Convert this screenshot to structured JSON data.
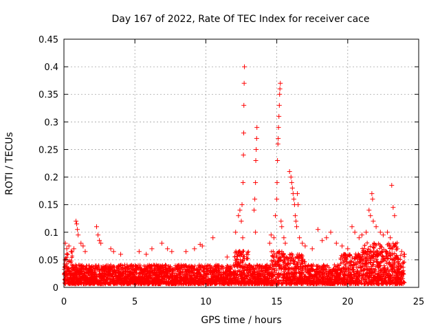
{
  "chart_data": {
    "type": "scatter",
    "title": "Day 167 of 2022, Rate Of TEC Index for receiver cace",
    "xlabel": "GPS time / hours",
    "ylabel": "ROTI / TECUs",
    "xlim": [
      0,
      25
    ],
    "ylim": [
      0,
      0.45
    ],
    "xticks": [
      0,
      5,
      10,
      15,
      20,
      25
    ],
    "xtick_labels": [
      "0",
      "5",
      "10",
      "15",
      "20",
      "25"
    ],
    "yticks": [
      0,
      0.05,
      0.1,
      0.15,
      0.2,
      0.25,
      0.3,
      0.35,
      0.4,
      0.45
    ],
    "ytick_labels": [
      "0",
      "0.05",
      "0.1",
      "0.15",
      "0.2",
      "0.25",
      "0.3",
      "0.35",
      "0.4",
      "0.45"
    ],
    "grid": true,
    "marker": "+",
    "color": "#ff0000",
    "series": [
      {
        "name": "ROTI",
        "points": [
          [
            0.1,
            0.08
          ],
          [
            0.2,
            0.07
          ],
          [
            0.35,
            0.075
          ],
          [
            0.5,
            0.065
          ],
          [
            0.7,
            0.07
          ],
          [
            0.85,
            0.12
          ],
          [
            0.9,
            0.115
          ],
          [
            0.95,
            0.105
          ],
          [
            1.0,
            0.095
          ],
          [
            1.2,
            0.08
          ],
          [
            1.35,
            0.075
          ],
          [
            1.5,
            0.065
          ],
          [
            2.3,
            0.11
          ],
          [
            2.4,
            0.095
          ],
          [
            2.5,
            0.085
          ],
          [
            2.6,
            0.08
          ],
          [
            3.3,
            0.07
          ],
          [
            3.5,
            0.065
          ],
          [
            4.0,
            0.06
          ],
          [
            5.3,
            0.065
          ],
          [
            5.8,
            0.06
          ],
          [
            6.2,
            0.07
          ],
          [
            6.9,
            0.08
          ],
          [
            7.3,
            0.07
          ],
          [
            7.6,
            0.065
          ],
          [
            8.6,
            0.065
          ],
          [
            9.2,
            0.07
          ],
          [
            9.6,
            0.078
          ],
          [
            9.75,
            0.075
          ],
          [
            10.5,
            0.09
          ],
          [
            11.5,
            0.055
          ],
          [
            12.1,
            0.1
          ],
          [
            12.3,
            0.13
          ],
          [
            12.4,
            0.14
          ],
          [
            12.5,
            0.12
          ],
          [
            12.55,
            0.15
          ],
          [
            12.6,
            0.09
          ],
          [
            12.62,
            0.19
          ],
          [
            12.65,
            0.24
          ],
          [
            12.67,
            0.28
          ],
          [
            12.68,
            0.33
          ],
          [
            12.7,
            0.37
          ],
          [
            12.72,
            0.4
          ],
          [
            13.4,
            0.14
          ],
          [
            13.45,
            0.16
          ],
          [
            13.5,
            0.19
          ],
          [
            13.52,
            0.23
          ],
          [
            13.55,
            0.25
          ],
          [
            13.58,
            0.27
          ],
          [
            13.6,
            0.29
          ],
          [
            13.5,
            0.1
          ],
          [
            14.5,
            0.08
          ],
          [
            14.6,
            0.095
          ],
          [
            14.8,
            0.09
          ],
          [
            14.9,
            0.13
          ],
          [
            15.0,
            0.16
          ],
          [
            15.02,
            0.19
          ],
          [
            15.05,
            0.23
          ],
          [
            15.08,
            0.26
          ],
          [
            15.1,
            0.27
          ],
          [
            15.12,
            0.29
          ],
          [
            15.15,
            0.31
          ],
          [
            15.18,
            0.33
          ],
          [
            15.2,
            0.35
          ],
          [
            15.22,
            0.36
          ],
          [
            15.25,
            0.37
          ],
          [
            15.3,
            0.12
          ],
          [
            15.35,
            0.11
          ],
          [
            15.5,
            0.09
          ],
          [
            15.6,
            0.08
          ],
          [
            15.9,
            0.21
          ],
          [
            16.0,
            0.2
          ],
          [
            16.05,
            0.19
          ],
          [
            16.1,
            0.18
          ],
          [
            16.15,
            0.17
          ],
          [
            16.2,
            0.16
          ],
          [
            16.25,
            0.15
          ],
          [
            16.3,
            0.13
          ],
          [
            16.35,
            0.12
          ],
          [
            16.4,
            0.11
          ],
          [
            16.45,
            0.17
          ],
          [
            16.5,
            0.15
          ],
          [
            16.6,
            0.09
          ],
          [
            16.8,
            0.08
          ],
          [
            17.0,
            0.075
          ],
          [
            17.5,
            0.07
          ],
          [
            17.9,
            0.105
          ],
          [
            18.2,
            0.085
          ],
          [
            18.5,
            0.09
          ],
          [
            18.8,
            0.1
          ],
          [
            19.2,
            0.08
          ],
          [
            19.6,
            0.075
          ],
          [
            20.0,
            0.07
          ],
          [
            20.3,
            0.11
          ],
          [
            20.5,
            0.1
          ],
          [
            20.8,
            0.09
          ],
          [
            21.0,
            0.095
          ],
          [
            21.3,
            0.1
          ],
          [
            21.5,
            0.14
          ],
          [
            21.6,
            0.13
          ],
          [
            21.7,
            0.17
          ],
          [
            21.75,
            0.16
          ],
          [
            21.8,
            0.12
          ],
          [
            22.0,
            0.11
          ],
          [
            22.3,
            0.1
          ],
          [
            22.5,
            0.095
          ],
          [
            22.8,
            0.1
          ],
          [
            23.0,
            0.09
          ],
          [
            23.2,
            0.145
          ],
          [
            23.3,
            0.13
          ],
          [
            23.1,
            0.185
          ],
          [
            23.5,
            0.07
          ],
          [
            23.8,
            0.065
          ],
          [
            24.0,
            0.06
          ]
        ]
      }
    ]
  }
}
